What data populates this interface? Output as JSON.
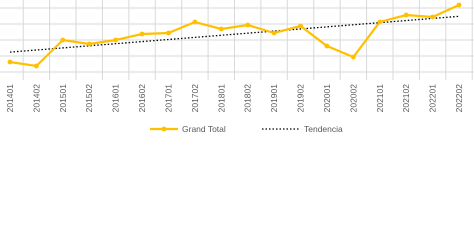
{
  "chart_data": {
    "type": "line",
    "categories": [
      "201401",
      "201402",
      "201501",
      "201502",
      "201601",
      "201602",
      "201701",
      "201702",
      "201801",
      "201802",
      "201901",
      "201902",
      "202001",
      "202002",
      "202101",
      "202102",
      "202201",
      "202202"
    ],
    "series": [
      {
        "name": "Grand Total",
        "color": "#ffc000",
        "values": [
          18,
          14,
          40,
          36,
          40,
          46,
          47,
          58,
          51,
          55,
          47,
          54,
          34,
          23,
          58,
          65,
          63,
          75
        ]
      }
    ],
    "trendline": {
      "name": "Tendencia",
      "color": "#000000"
    },
    "ylim": [
      0,
      80
    ],
    "grid": true
  }
}
